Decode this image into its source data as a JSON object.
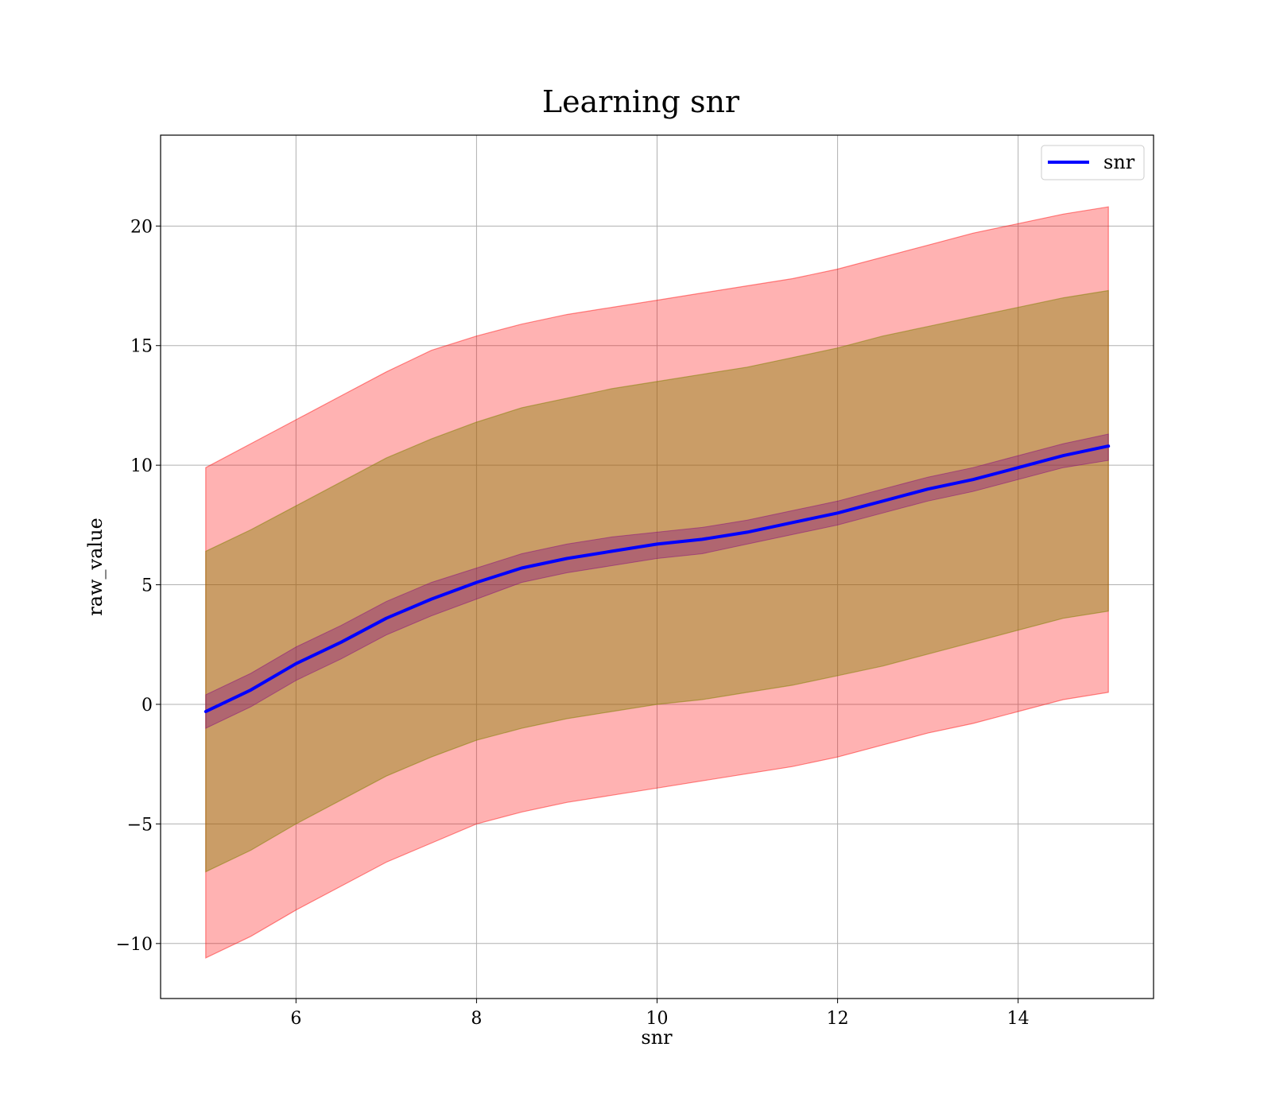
{
  "chart_data": {
    "type": "line",
    "title": "Learning snr",
    "xlabel": "snr",
    "ylabel": "raw_value",
    "xlim": [
      4.5,
      15.5
    ],
    "ylim": [
      -12.3,
      23.8
    ],
    "xticks": [
      6,
      8,
      10,
      12,
      14
    ],
    "xtick_labels": [
      "6",
      "8",
      "10",
      "12",
      "14"
    ],
    "yticks": [
      -10,
      -5,
      0,
      5,
      10,
      15,
      20
    ],
    "ytick_labels": [
      "−10",
      "−5",
      "0",
      "5",
      "10",
      "15",
      "20"
    ],
    "grid": true,
    "legend_position": "top-right",
    "x": [
      5.0,
      5.5,
      6.0,
      6.5,
      7.0,
      7.5,
      8.0,
      8.5,
      9.0,
      9.5,
      10.0,
      10.5,
      11.0,
      11.5,
      12.0,
      12.5,
      13.0,
      13.5,
      14.0,
      14.5,
      15.0
    ],
    "series": [
      {
        "name": "snr",
        "color": "#0000ff",
        "values": [
          -0.3,
          0.6,
          1.7,
          2.6,
          3.6,
          4.4,
          5.1,
          5.7,
          6.1,
          6.4,
          6.7,
          6.9,
          7.2,
          7.6,
          8.0,
          8.5,
          9.0,
          9.4,
          9.9,
          10.4,
          10.8
        ],
        "band_outer_upper": [
          9.9,
          10.9,
          11.9,
          12.9,
          13.9,
          14.8,
          15.4,
          15.9,
          16.3,
          16.6,
          16.9,
          17.2,
          17.5,
          17.8,
          18.2,
          18.7,
          19.2,
          19.7,
          20.1,
          20.5,
          20.8
        ],
        "band_outer_lower": [
          -10.6,
          -9.7,
          -8.6,
          -7.6,
          -6.6,
          -5.8,
          -5.0,
          -4.5,
          -4.1,
          -3.8,
          -3.5,
          -3.2,
          -2.9,
          -2.6,
          -2.2,
          -1.7,
          -1.2,
          -0.8,
          -0.3,
          0.2,
          0.5
        ],
        "band_inner_upper": [
          6.4,
          7.3,
          8.3,
          9.3,
          10.3,
          11.1,
          11.8,
          12.4,
          12.8,
          13.2,
          13.5,
          13.8,
          14.1,
          14.5,
          14.9,
          15.4,
          15.8,
          16.2,
          16.6,
          17.0,
          17.3
        ],
        "band_inner_lower": [
          -7.0,
          -6.1,
          -5.0,
          -4.0,
          -3.0,
          -2.2,
          -1.5,
          -1.0,
          -0.6,
          -0.3,
          0.0,
          0.2,
          0.5,
          0.8,
          1.2,
          1.6,
          2.1,
          2.6,
          3.1,
          3.6,
          3.9
        ],
        "band_core_upper": [
          0.4,
          1.3,
          2.4,
          3.3,
          4.3,
          5.1,
          5.7,
          6.3,
          6.7,
          7.0,
          7.2,
          7.4,
          7.7,
          8.1,
          8.5,
          9.0,
          9.5,
          9.9,
          10.4,
          10.9,
          11.3
        ],
        "band_core_lower": [
          -1.0,
          -0.1,
          1.0,
          1.9,
          2.9,
          3.7,
          4.4,
          5.1,
          5.5,
          5.8,
          6.1,
          6.3,
          6.7,
          7.1,
          7.5,
          8.0,
          8.5,
          8.9,
          9.4,
          9.9,
          10.2
        ]
      }
    ],
    "colors": {
      "band_outer": "#ff0000",
      "band_inner": "#808000",
      "band_core": "#800080",
      "line": "#0000ff"
    }
  }
}
